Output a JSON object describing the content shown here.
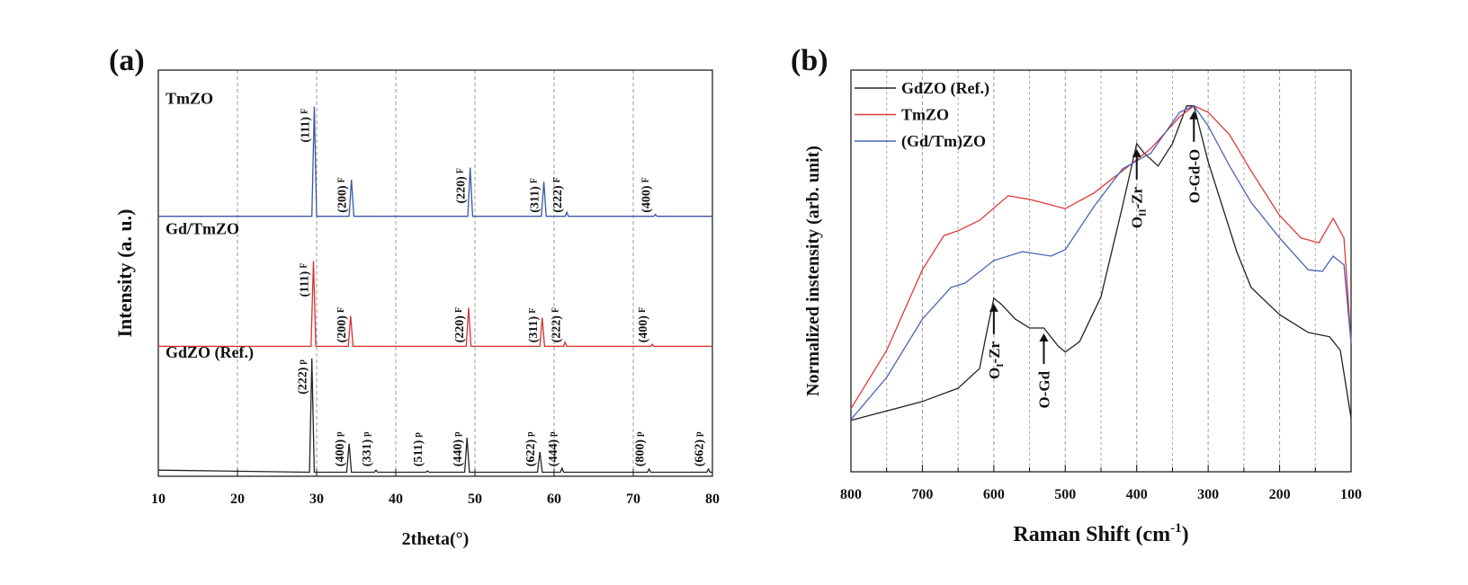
{
  "chart_data": [
    {
      "type": "line",
      "panel_label": "(a)",
      "x_label": "2theta(°)",
      "y_label": "Intensity (a. u.)",
      "xlim": [
        10,
        80
      ],
      "xticks": [
        10,
        20,
        30,
        40,
        50,
        60,
        70,
        80
      ],
      "ylim": [
        0,
        100
      ],
      "grid": true,
      "series": [
        {
          "name": "TmZO",
          "color": "#3a56a8",
          "x": [
            10,
            29.4,
            29.7,
            30.0,
            34.1,
            34.4,
            34.7,
            49.1,
            49.4,
            49.7,
            58.4,
            58.7,
            59.0,
            61.4,
            61.6,
            61.8,
            72.6,
            72.8,
            73.0,
            80
          ],
          "values": [
            64,
            64,
            91,
            64,
            64,
            73,
            64,
            64,
            76,
            64,
            64,
            72.5,
            64,
            64,
            65,
            64,
            64,
            64.5,
            64,
            64
          ],
          "peaks": [
            {
              "label": "(111)",
              "sub": "F",
              "x": 29.7
            },
            {
              "label": "(200)",
              "sub": "F",
              "x": 34.4
            },
            {
              "label": "(220)",
              "sub": "F",
              "x": 49.4
            },
            {
              "label": "(311)",
              "sub": "F",
              "x": 58.7
            },
            {
              "label": "(222)",
              "sub": "F",
              "x": 61.6
            },
            {
              "label": "(400)",
              "sub": "F",
              "x": 72.8
            }
          ]
        },
        {
          "name": "Gd/TmZO",
          "color": "#d9302f",
          "x": [
            10,
            29.3,
            29.6,
            29.9,
            34.0,
            34.3,
            34.6,
            48.9,
            49.2,
            49.5,
            58.2,
            58.5,
            58.8,
            61.2,
            61.4,
            61.6,
            72.2,
            72.4,
            72.6,
            80
          ],
          "values": [
            32,
            32,
            53,
            32,
            32,
            39.5,
            32,
            32,
            41.5,
            32,
            32,
            39,
            32,
            32,
            33,
            32,
            32,
            32.5,
            32,
            32
          ],
          "peaks": [
            {
              "label": "(111)",
              "sub": "F",
              "x": 29.6
            },
            {
              "label": "(200)",
              "sub": "F",
              "x": 34.3
            },
            {
              "label": "(220)",
              "sub": "F",
              "x": 49.2
            },
            {
              "label": "(311)",
              "sub": "F",
              "x": 58.5
            },
            {
              "label": "(222)",
              "sub": "F",
              "x": 61.4
            },
            {
              "label": "(400)",
              "sub": "F",
              "x": 72.4
            }
          ]
        },
        {
          "name": "GdZO (Ref.)",
          "color": "#222222",
          "x": [
            10,
            29.1,
            29.4,
            29.7,
            33.8,
            34.1,
            34.4,
            37.3,
            37.5,
            37.7,
            43.8,
            44.0,
            44.2,
            48.7,
            49.0,
            49.3,
            57.9,
            58.2,
            58.5,
            60.8,
            61.0,
            61.2,
            71.8,
            72.0,
            72.2,
            79.3,
            79.5,
            79.7,
            80
          ],
          "values": [
            1.5,
            1,
            29,
            1,
            1,
            8,
            1,
            1,
            1.5,
            1,
            1,
            1.3,
            1,
            1,
            9.5,
            1,
            1,
            6,
            1,
            1,
            2,
            1,
            1,
            1.8,
            1,
            1,
            1.8,
            1,
            1
          ],
          "peaks": [
            {
              "label": "(222)",
              "sub": "p",
              "x": 29.4
            },
            {
              "label": "(400)",
              "sub": "p",
              "x": 34.1
            },
            {
              "label": "(331)",
              "sub": "p",
              "x": 37.5
            },
            {
              "label": "(511)",
              "sub": "p",
              "x": 44.0
            },
            {
              "label": "(440)",
              "sub": "p",
              "x": 49.0
            },
            {
              "label": "(622)",
              "sub": "p",
              "x": 58.2
            },
            {
              "label": "(444)",
              "sub": "p",
              "x": 61.0
            },
            {
              "label": "(800)",
              "sub": "p",
              "x": 72.0
            },
            {
              "label": "(662)",
              "sub": "p",
              "x": 79.5
            }
          ]
        }
      ]
    },
    {
      "type": "line",
      "panel_label": "(b)",
      "x_label": "Raman Shift (cm",
      "x_label_sup": "-1",
      "x_label_end": ")",
      "y_label": "Normalized instensity (arb. unit)",
      "xlim": [
        800,
        100
      ],
      "xticks": [
        800,
        700,
        600,
        500,
        400,
        300,
        200,
        100
      ],
      "minor_xticks": [
        750,
        650,
        550,
        450,
        350,
        250,
        150
      ],
      "ylim": [
        0,
        100
      ],
      "grid": true,
      "legend": "upper left",
      "series": [
        {
          "name": "GdZO (Ref.)",
          "color": "#222222",
          "x": [
            800,
            700,
            650,
            620,
            610,
            600,
            590,
            570,
            550,
            530,
            510,
            500,
            480,
            450,
            420,
            400,
            390,
            370,
            350,
            330,
            320,
            300,
            280,
            260,
            240,
            200,
            160,
            130,
            115,
            100
          ],
          "values": [
            12.8,
            17.5,
            20.8,
            25.7,
            34.7,
            43.2,
            41.8,
            38.0,
            35.8,
            35.8,
            31.3,
            29.8,
            32.4,
            43.6,
            66.0,
            81.7,
            79.4,
            76.1,
            81.7,
            91.1,
            91.1,
            77.2,
            66.0,
            54.8,
            45.9,
            39.1,
            34.7,
            33.6,
            30.2,
            13.4
          ]
        },
        {
          "name": "TmZO",
          "color": "#e0383a",
          "x": [
            800,
            750,
            700,
            670,
            650,
            620,
            580,
            550,
            500,
            460,
            420,
            380,
            340,
            320,
            300,
            270,
            240,
            200,
            170,
            145,
            125,
            110,
            100
          ],
          "values": [
            15.7,
            30.2,
            50.3,
            58.8,
            60.0,
            62.6,
            68.7,
            67.8,
            65.5,
            69.4,
            74.9,
            80.5,
            88.4,
            91.1,
            89.5,
            83.9,
            74.9,
            63.8,
            58.2,
            57.0,
            63.1,
            58.2,
            32.4
          ]
        },
        {
          "name": "(Gd/Tm)ZO",
          "color": "#4a63b8",
          "x": [
            800,
            750,
            700,
            660,
            640,
            600,
            560,
            520,
            500,
            460,
            420,
            380,
            340,
            320,
            300,
            270,
            240,
            200,
            160,
            140,
            125,
            110,
            100
          ],
          "values": [
            13.0,
            23.5,
            38.0,
            45.9,
            47.0,
            52.6,
            54.8,
            53.7,
            55.3,
            66.0,
            75.4,
            79.4,
            89.5,
            91.1,
            86.1,
            76.1,
            67.1,
            58.2,
            50.3,
            49.9,
            53.7,
            51.5,
            32.0
          ]
        }
      ],
      "annotations": [
        {
          "text": "O",
          "sub": "I",
          "rest": "-Zr",
          "x": 600
        },
        {
          "text": "O-Gd",
          "x": 530
        },
        {
          "text": "O",
          "sub": "II",
          "rest": "-Zr",
          "x": 400
        },
        {
          "text": "O-Gd-O",
          "x": 320
        }
      ]
    }
  ]
}
